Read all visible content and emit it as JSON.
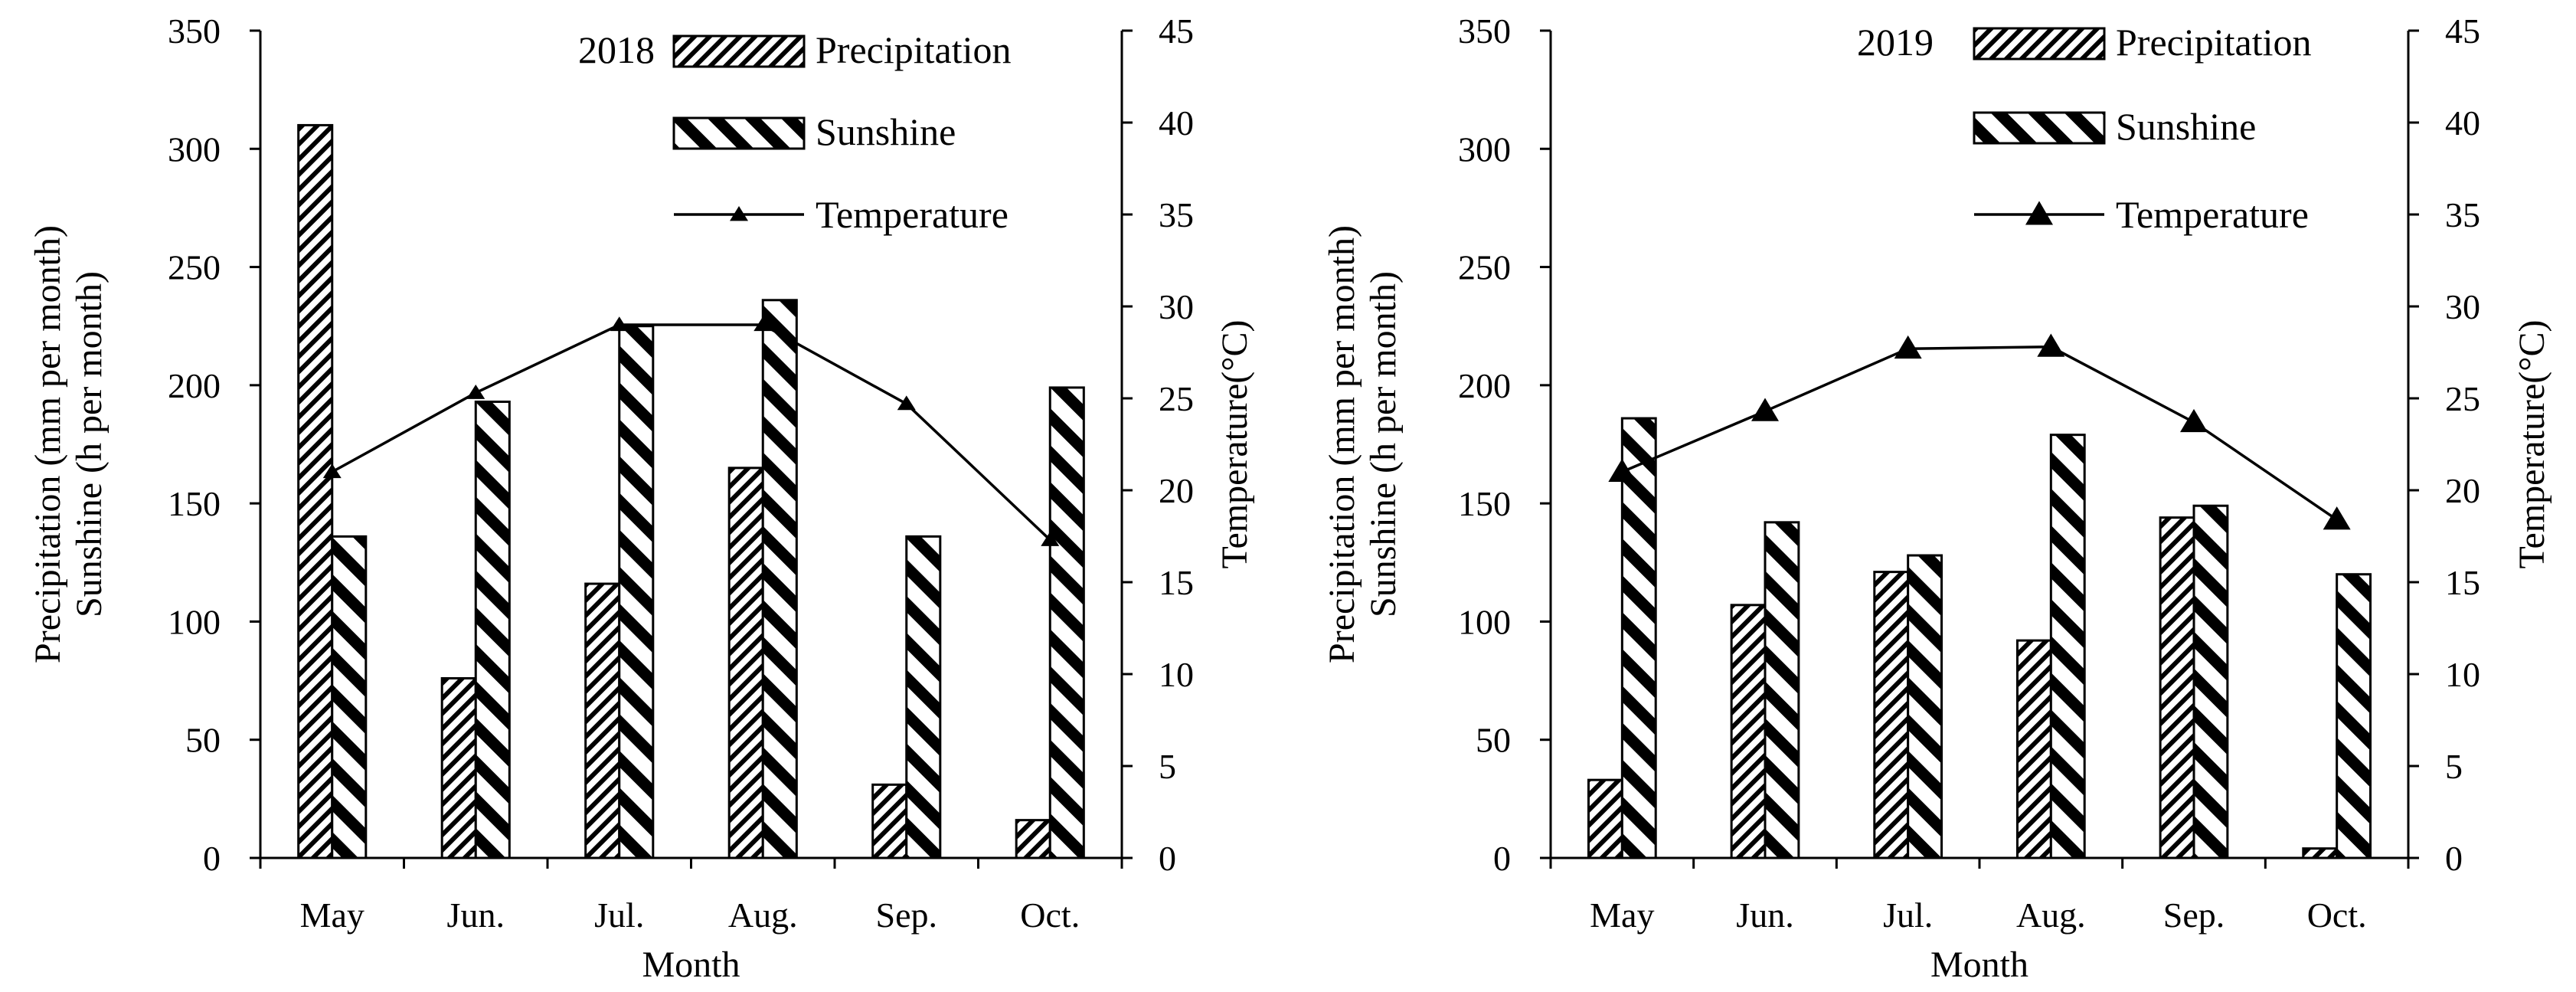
{
  "chart_data": [
    {
      "type": "bar",
      "year_label": "2018",
      "categories": [
        "May",
        "Jun.",
        "Jul.",
        "Aug.",
        "Sep.",
        "Oct."
      ],
      "series": [
        {
          "name": "Precipitation",
          "axis": "left",
          "values": [
            310,
            76,
            116,
            165,
            31,
            16
          ]
        },
        {
          "name": "Sunshine",
          "axis": "left",
          "values": [
            136,
            193,
            225,
            236,
            136,
            199
          ]
        },
        {
          "name": "Temperature",
          "axis": "right",
          "kind": "line",
          "values": [
            21.0,
            25.3,
            29.0,
            29.0,
            24.7,
            17.3
          ]
        }
      ],
      "xlabel": "Month",
      "ylabel_lines": [
        "Precipitation (mm per month)",
        "Sunshine (h per month)"
      ],
      "y2label": "Temperature(°C)",
      "ylim": [
        0,
        350
      ],
      "y_ticks": [
        0,
        50,
        100,
        150,
        200,
        250,
        300,
        350
      ],
      "y2lim": [
        0,
        45
      ],
      "y2_ticks": [
        0,
        5,
        10,
        15,
        20,
        25,
        30,
        35,
        40,
        45
      ],
      "legend_position": "top-right"
    },
    {
      "type": "bar",
      "year_label": "2019",
      "categories": [
        "May",
        "Jun.",
        "Jul.",
        "Aug.",
        "Sep.",
        "Oct."
      ],
      "series": [
        {
          "name": "Precipitation",
          "axis": "left",
          "values": [
            33,
            107,
            121,
            92,
            144,
            4
          ]
        },
        {
          "name": "Sunshine",
          "axis": "left",
          "values": [
            186,
            142,
            128,
            179,
            149,
            120
          ]
        },
        {
          "name": "Temperature",
          "axis": "right",
          "kind": "line",
          "values": [
            21.0,
            24.3,
            27.7,
            27.8,
            23.7,
            18.4
          ]
        }
      ],
      "xlabel": "Month",
      "ylabel_lines": [
        "Precipitation (mm per month)",
        "Sunshine (h per month)"
      ],
      "y2label": "Temperature(°C)",
      "ylim": [
        0,
        350
      ],
      "y_ticks": [
        0,
        50,
        100,
        150,
        200,
        250,
        300,
        350
      ],
      "y2lim": [
        0,
        45
      ],
      "y2_ticks": [
        0,
        5,
        10,
        15,
        20,
        25,
        30,
        35,
        40,
        45
      ],
      "legend_position": "top-right"
    }
  ]
}
